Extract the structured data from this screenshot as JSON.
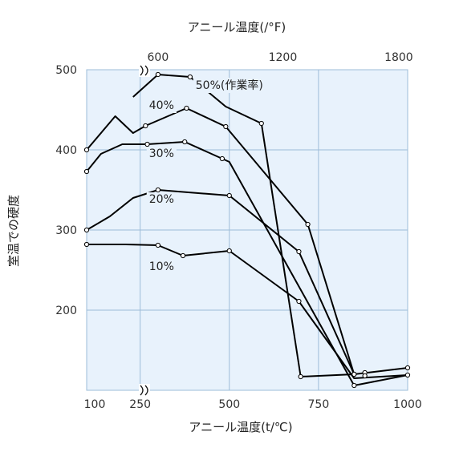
{
  "chart_data": {
    "type": "line",
    "title": "",
    "xlabel": "アニール温度(t/℃)",
    "x2label": "アニール温度(/°F)",
    "ylabel": "室温での硬度",
    "xlim": [
      100,
      1000
    ],
    "ylim": [
      100,
      500
    ],
    "x_ticks": [
      {
        "value": 100,
        "label": "100"
      },
      {
        "value": 250,
        "label": "250"
      },
      {
        "value": 500,
        "label": "500"
      },
      {
        "value": 750,
        "label": "750"
      },
      {
        "value": 1000,
        "label": "1000"
      }
    ],
    "x2_ticks": [
      {
        "value": 300,
        "label": "600"
      },
      {
        "value": 650,
        "label": "1200"
      },
      {
        "value": 975,
        "label": "1800"
      }
    ],
    "y_ticks": [
      {
        "value": 200,
        "label": "200"
      },
      {
        "value": 300,
        "label": "300"
      },
      {
        "value": 400,
        "label": "400"
      },
      {
        "value": 500,
        "label": "500"
      }
    ],
    "grid": true,
    "series": [
      {
        "name": "50%(作業率)",
        "label_at": [
          500,
          480
        ],
        "points": [
          [
            230,
            466
          ],
          [
            300,
            494
          ],
          [
            390,
            491
          ],
          [
            490,
            454
          ],
          [
            590,
            433
          ],
          [
            700,
            117
          ],
          [
            850,
            120
          ],
          [
            1000,
            128
          ]
        ],
        "markers": [
          [
            300,
            494
          ],
          [
            390,
            491
          ],
          [
            590,
            433
          ],
          [
            700,
            117
          ],
          [
            850,
            120
          ],
          [
            880,
            122
          ],
          [
            1000,
            128
          ]
        ]
      },
      {
        "name": "40%",
        "label_at": [
          310,
          455
        ],
        "points": [
          [
            100,
            400
          ],
          [
            180,
            442
          ],
          [
            230,
            421
          ],
          [
            265,
            430
          ],
          [
            380,
            452
          ],
          [
            490,
            429
          ],
          [
            720,
            307
          ],
          [
            850,
            120
          ]
        ],
        "markers": [
          [
            100,
            400
          ],
          [
            265,
            430
          ],
          [
            380,
            452
          ],
          [
            490,
            429
          ],
          [
            720,
            307
          ],
          [
            850,
            120
          ]
        ]
      },
      {
        "name": "30%",
        "label_at": [
          310,
          395
        ],
        "points": [
          [
            100,
            373
          ],
          [
            140,
            395
          ],
          [
            200,
            407
          ],
          [
            270,
            407
          ],
          [
            375,
            410
          ],
          [
            480,
            389
          ],
          [
            500,
            385
          ],
          [
            850,
            106
          ],
          [
            1000,
            119
          ]
        ],
        "markers": [
          [
            100,
            373
          ],
          [
            270,
            407
          ],
          [
            375,
            410
          ],
          [
            480,
            389
          ],
          [
            850,
            106
          ],
          [
            1000,
            119
          ]
        ]
      },
      {
        "name": "20%",
        "label_at": [
          310,
          338
        ],
        "points": [
          [
            100,
            300
          ],
          [
            165,
            317
          ],
          [
            230,
            340
          ],
          [
            300,
            350
          ],
          [
            500,
            343
          ],
          [
            695,
            273
          ],
          [
            850,
            120
          ]
        ],
        "markers": [
          [
            100,
            300
          ],
          [
            300,
            350
          ],
          [
            500,
            343
          ],
          [
            695,
            273
          ],
          [
            850,
            120
          ]
        ]
      },
      {
        "name": "10%",
        "label_at": [
          310,
          254
        ],
        "points": [
          [
            100,
            282
          ],
          [
            160,
            282
          ],
          [
            210,
            282
          ],
          [
            300,
            281
          ],
          [
            370,
            268
          ],
          [
            500,
            274
          ],
          [
            695,
            211
          ],
          [
            850,
            115
          ],
          [
            1000,
            119
          ]
        ],
        "markers": [
          [
            100,
            282
          ],
          [
            300,
            281
          ],
          [
            370,
            268
          ],
          [
            500,
            274
          ],
          [
            695,
            211
          ],
          [
            880,
            118
          ]
        ]
      }
    ]
  }
}
